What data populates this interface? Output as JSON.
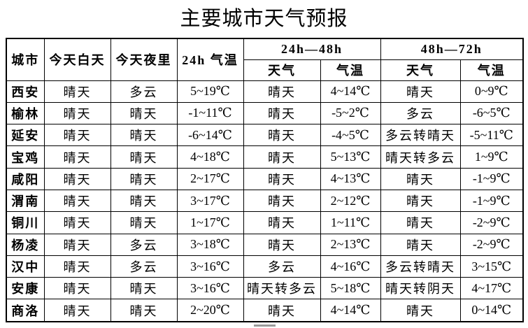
{
  "title": "主要城市天气预报",
  "colors": {
    "text": "#000000",
    "background": "#ffffff",
    "table_border": "#000000",
    "bottom_bar": "#9a9a9a"
  },
  "table": {
    "headers": {
      "city": "城市",
      "today_day": "今天白天",
      "today_night": "今天夜里",
      "temp_24h": "24h 气温",
      "range_24_48": "24h—48h",
      "range_48_72": "48h—72h",
      "weather": "天气",
      "temp": "气温"
    },
    "column_keys": [
      "city",
      "today_day",
      "today_night",
      "temp_24h",
      "weather_24_48",
      "temp_24_48",
      "weather_48_72",
      "temp_48_72"
    ],
    "rows": [
      {
        "city": "西安",
        "today_day": "晴天",
        "today_night": "多云",
        "temp_24h": "5~19℃",
        "weather_24_48": "晴天",
        "temp_24_48": "4~14℃",
        "weather_48_72": "晴天",
        "temp_48_72": "0~9℃"
      },
      {
        "city": "榆林",
        "today_day": "晴天",
        "today_night": "晴天",
        "temp_24h": "-1~11℃",
        "weather_24_48": "晴天",
        "temp_24_48": "-5~2℃",
        "weather_48_72": "多云",
        "temp_48_72": "-6~5℃"
      },
      {
        "city": "延安",
        "today_day": "晴天",
        "today_night": "晴天",
        "temp_24h": "-6~14℃",
        "weather_24_48": "晴天",
        "temp_24_48": "-4~5℃",
        "weather_48_72": "多云转晴天",
        "temp_48_72": "-5~11℃"
      },
      {
        "city": "宝鸡",
        "today_day": "晴天",
        "today_night": "晴天",
        "temp_24h": "4~18℃",
        "weather_24_48": "晴天",
        "temp_24_48": "5~13℃",
        "weather_48_72": "晴天转多云",
        "temp_48_72": "1~9℃"
      },
      {
        "city": "咸阳",
        "today_day": "晴天",
        "today_night": "晴天",
        "temp_24h": "2~17℃",
        "weather_24_48": "晴天",
        "temp_24_48": "4~13℃",
        "weather_48_72": "晴天",
        "temp_48_72": "-1~9℃"
      },
      {
        "city": "渭南",
        "today_day": "晴天",
        "today_night": "晴天",
        "temp_24h": "3~17℃",
        "weather_24_48": "晴天",
        "temp_24_48": "2~12℃",
        "weather_48_72": "晴天",
        "temp_48_72": "-1~9℃"
      },
      {
        "city": "铜川",
        "today_day": "晴天",
        "today_night": "晴天",
        "temp_24h": "1~17℃",
        "weather_24_48": "晴天",
        "temp_24_48": "1~11℃",
        "weather_48_72": "晴天",
        "temp_48_72": "-2~9℃"
      },
      {
        "city": "杨凌",
        "today_day": "晴天",
        "today_night": "多云",
        "temp_24h": "3~18℃",
        "weather_24_48": "晴天",
        "temp_24_48": "2~13℃",
        "weather_48_72": "晴天",
        "temp_48_72": "-2~9℃"
      },
      {
        "city": "汉中",
        "today_day": "晴天",
        "today_night": "多云",
        "temp_24h": "3~16℃",
        "weather_24_48": "多云",
        "temp_24_48": "4~16℃",
        "weather_48_72": "多云转晴天",
        "temp_48_72": "3~15℃"
      },
      {
        "city": "安康",
        "today_day": "晴天",
        "today_night": "晴天",
        "temp_24h": "3~16℃",
        "weather_24_48": "晴天转多云",
        "temp_24_48": "5~18℃",
        "weather_48_72": "晴天转阴天",
        "temp_48_72": "4~17℃"
      },
      {
        "city": "商洛",
        "today_day": "晴天",
        "today_night": "晴天",
        "temp_24h": "2~20℃",
        "weather_24_48": "晴天",
        "temp_24_48": "4~14℃",
        "weather_48_72": "晴天",
        "temp_48_72": "0~14℃"
      }
    ]
  }
}
